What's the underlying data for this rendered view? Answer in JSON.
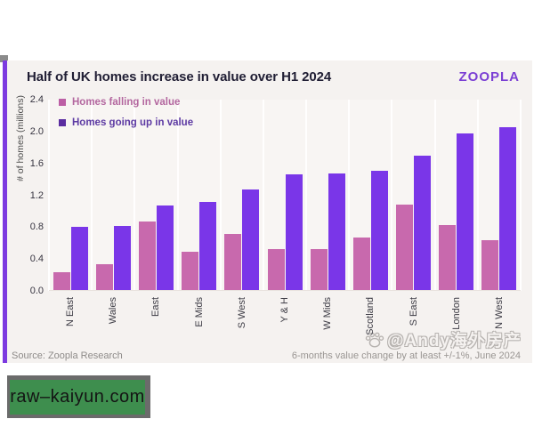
{
  "card": {
    "title": "Half of UK homes increase in value over H1 2024",
    "brand": "ZOOPLA",
    "brand_color": "#7b3fd4",
    "background": "#f5f2f0",
    "accent_stripe_color": "#7c3ae0"
  },
  "chart_data": {
    "type": "bar",
    "title": "Half of UK homes increase in value over H1 2024",
    "ylabel": "# of homes (millions)",
    "ylim": [
      0,
      2.4
    ],
    "yticks": [
      "0.0",
      "0.4",
      "0.8",
      "1.2",
      "1.6",
      "2.0",
      "2.4"
    ],
    "grid": "vertical",
    "legend_position": "top-left",
    "categories": [
      "N East",
      "Wales",
      "East",
      "E Mids",
      "S West",
      "Y & H",
      "W Mids",
      "Scotland",
      "S East",
      "London",
      "N West"
    ],
    "series": [
      {
        "name": "Homes falling in value",
        "color": "#c869ad",
        "legend_color": "#bc5fa5",
        "label_color": "#b3679f",
        "values": [
          0.24,
          0.34,
          0.87,
          0.49,
          0.71,
          0.52,
          0.52,
          0.67,
          1.08,
          0.83,
          0.64
        ]
      },
      {
        "name": "Homes going up in value",
        "color": "#7a36e8",
        "legend_color": "#5b2da0",
        "label_color": "#5d3aa3",
        "values": [
          0.8,
          0.81,
          1.07,
          1.12,
          1.27,
          1.46,
          1.47,
          1.51,
          1.7,
          1.98,
          2.05
        ]
      }
    ]
  },
  "footer": {
    "source": "Source: Zoopla Research",
    "note": "6-months value change by at least +/-1%, June 2024"
  },
  "watermark": {
    "icon": "paw-print",
    "text": "@Andy海外房产"
  },
  "badge": {
    "text": "raw–kaiyun.com",
    "background": "#3e8e4e"
  }
}
